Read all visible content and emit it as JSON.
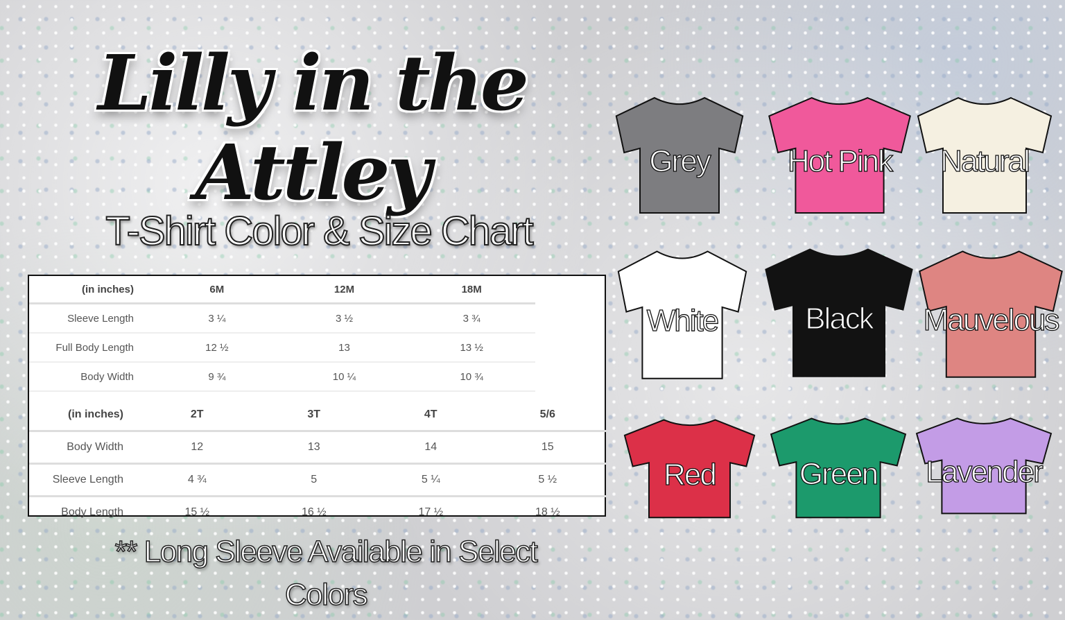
{
  "brand": {
    "logo_text": "Lilly in the Attley"
  },
  "subtitle": "T-Shirt Color & Size Chart",
  "table_infant": {
    "headers": [
      "(in inches)",
      "6M",
      "12M",
      "18M"
    ],
    "rows": [
      [
        "Sleeve Length",
        "3 ¼",
        "3 ½",
        "3 ¾"
      ],
      [
        "Full Body Length",
        "12 ½",
        "13",
        "13 ½"
      ],
      [
        "Body Width",
        "9 ¾",
        "10 ¼",
        "10 ¾"
      ]
    ]
  },
  "table_toddler": {
    "headers": [
      "(in inches)",
      "2T",
      "3T",
      "4T",
      "5/6"
    ],
    "rows": [
      [
        "Body Width",
        "12",
        "13",
        "14",
        "15"
      ],
      [
        "Sleeve Length",
        "4 ¾",
        "5",
        "5 ¼",
        "5 ½"
      ],
      [
        "Body Length",
        "15 ½",
        "16 ½",
        "17 ½",
        "18 ½"
      ]
    ]
  },
  "note": "** Long Sleeve Available in Select Colors",
  "colors": [
    {
      "name": "Grey",
      "hex": "#7d7d80"
    },
    {
      "name": "Hot Pink",
      "hex": "#f0599b"
    },
    {
      "name": "Natural",
      "hex": "#f5f0e1"
    },
    {
      "name": "White",
      "hex": "#ffffff"
    },
    {
      "name": "Black",
      "hex": "#121212"
    },
    {
      "name": "Mauvelous",
      "hex": "#de8582"
    },
    {
      "name": "Red",
      "hex": "#dc3048"
    },
    {
      "name": "Green",
      "hex": "#1c9a6c"
    },
    {
      "name": "Lavender",
      "hex": "#c39ce6"
    }
  ]
}
